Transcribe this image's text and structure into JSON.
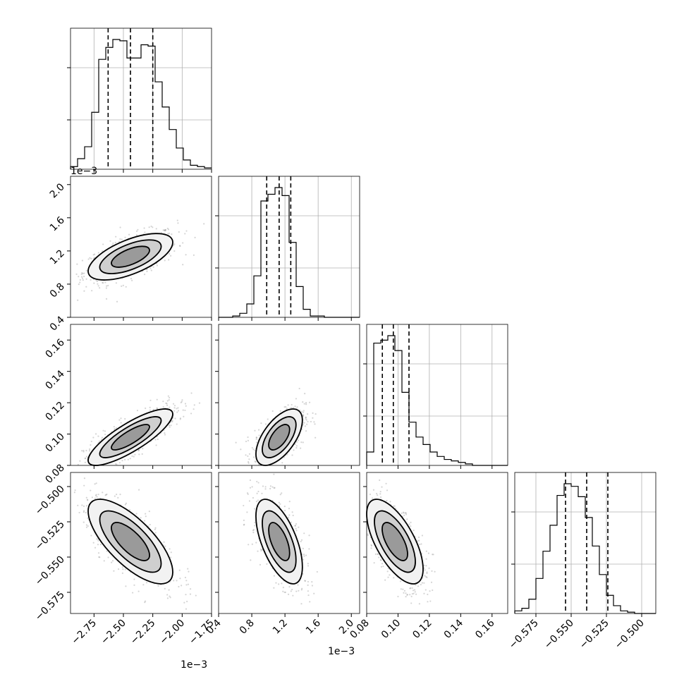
{
  "chart_data": {
    "type": "scatter",
    "parameters": [
      "",
      "",
      "",
      ""
    ],
    "multipliers": {
      "p0_x": "1e−3",
      "p1_y": "1e−3",
      "p1_x": "1e−3"
    },
    "ranges": [
      [
        -2.95,
        -1.75
      ],
      [
        0.4,
        2.1
      ],
      [
        0.08,
        0.17
      ],
      [
        -0.59,
        -0.49
      ]
    ],
    "ticks": [
      {
        "values": [
          -2.75,
          -2.5,
          -2.25,
          -2.0,
          -1.75
        ],
        "labels": [
          "−2.75",
          "−2.50",
          "−2.25",
          "−2.00",
          "−1.75"
        ]
      },
      {
        "values": [
          0.4,
          0.8,
          1.2,
          1.6,
          2.0
        ],
        "labels": [
          "0.4",
          "0.8",
          "1.2",
          "1.6",
          "2.0"
        ]
      },
      {
        "values": [
          0.08,
          0.1,
          0.12,
          0.14,
          0.16
        ],
        "labels": [
          "0.08",
          "0.10",
          "0.12",
          "0.14",
          "0.16"
        ]
      },
      {
        "values": [
          -0.575,
          -0.55,
          -0.525,
          -0.5
        ],
        "labels": [
          "−0.575",
          "−0.550",
          "−0.525",
          "−0.500"
        ]
      }
    ],
    "quantiles": [
      [
        -2.63,
        -2.44,
        -2.25
      ],
      [
        0.98,
        1.13,
        1.27
      ],
      [
        0.09,
        0.097,
        0.107
      ],
      [
        -0.554,
        -0.539,
        -0.524
      ]
    ],
    "histograms": [
      {
        "edges_start": -2.95,
        "bin_width": 0.06,
        "counts": [
          2,
          8,
          17,
          43,
          83,
          92,
          98,
          97,
          84,
          84,
          94,
          93,
          66,
          47,
          30,
          16,
          7,
          3,
          2,
          1
        ]
      },
      {
        "edges_start": 0.4,
        "bin_width": 0.085,
        "counts": [
          0,
          0,
          1,
          3,
          10,
          31,
          87,
          92,
          97,
          91,
          56,
          23,
          6,
          1,
          1,
          0,
          0,
          0,
          0,
          0
        ]
      },
      {
        "edges_start": 0.08,
        "bin_width": 0.0045,
        "counts": [
          9,
          82,
          84,
          87,
          77,
          49,
          29,
          19,
          14,
          9,
          6,
          4,
          3,
          2,
          1,
          0,
          0,
          0,
          0,
          0
        ]
      },
      {
        "edges_start": -0.59,
        "bin_width": 0.005,
        "counts": [
          2,
          4,
          11,
          27,
          48,
          68,
          91,
          100,
          98,
          90,
          74,
          52,
          30,
          14,
          6,
          2,
          1,
          0,
          0,
          0
        ]
      }
    ],
    "pairs": [
      {
        "row": 1,
        "col": 0,
        "mean": [
          -2.44,
          1.13
        ],
        "spread": [
          0.18,
          0.14
        ],
        "corr": 0.62
      },
      {
        "row": 2,
        "col": 0,
        "mean": [
          -2.44,
          0.098
        ],
        "spread": [
          0.18,
          0.009
        ],
        "corr": 0.82
      },
      {
        "row": 2,
        "col": 1,
        "mean": [
          1.13,
          0.098
        ],
        "spread": [
          0.14,
          0.009
        ],
        "corr": 0.6
      },
      {
        "row": 3,
        "col": 0,
        "mean": [
          -2.44,
          -0.539
        ],
        "spread": [
          0.18,
          0.015
        ],
        "corr": -0.72
      },
      {
        "row": 3,
        "col": 1,
        "mean": [
          1.13,
          -0.539
        ],
        "spread": [
          0.14,
          0.015
        ],
        "corr": -0.6
      },
      {
        "row": 3,
        "col": 2,
        "mean": [
          0.098,
          -0.539
        ],
        "spread": [
          0.009,
          0.015
        ],
        "corr": -0.65
      }
    ]
  }
}
